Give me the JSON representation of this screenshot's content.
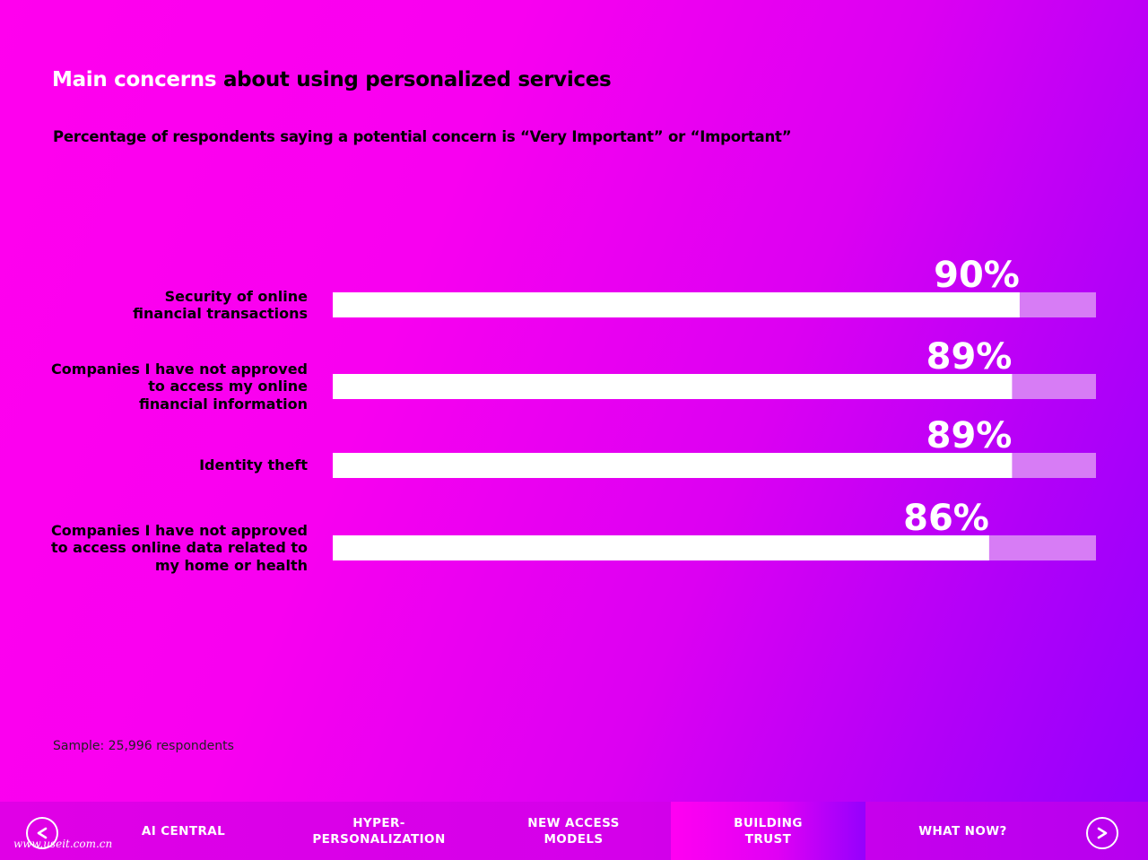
{
  "title": {
    "highlight": "Main concerns",
    "rest": " about using personalized services"
  },
  "subtitle": "Percentage of respondents saying a potential concern is “Very Important” or “Important”",
  "chart_data": {
    "type": "bar",
    "orientation": "horizontal",
    "categories": [
      "Security of online\nfinancial transactions",
      "Companies I have not approved\nto access my online\nfinancial information",
      "Identity theft",
      "Companies I have not approved\nto access online data related to\nmy home or health"
    ],
    "values": [
      90,
      89,
      89,
      86
    ],
    "value_labels": [
      "90%",
      "89%",
      "89%",
      "86%"
    ],
    "xlim": [
      0,
      100
    ],
    "bar_color": "#ffffff",
    "track_color": "#d77cf5",
    "title": "Main concerns about using personalized services",
    "xlabel": "",
    "ylabel": ""
  },
  "sample": "Sample: 25,996 respondents",
  "nav": {
    "prev_icon": "chevron-left-icon",
    "next_icon": "chevron-right-icon",
    "tabs": [
      {
        "label": "AI CENTRAL",
        "active": false
      },
      {
        "label": "HYPER-\nPERSONALIZATION",
        "active": false
      },
      {
        "label": "NEW ACCESS\nMODELS",
        "active": false
      },
      {
        "label": "BUILDING\nTRUST",
        "active": true
      },
      {
        "label": "WHAT NOW?",
        "active": false
      }
    ]
  },
  "watermark": "www.useit.com.cn"
}
